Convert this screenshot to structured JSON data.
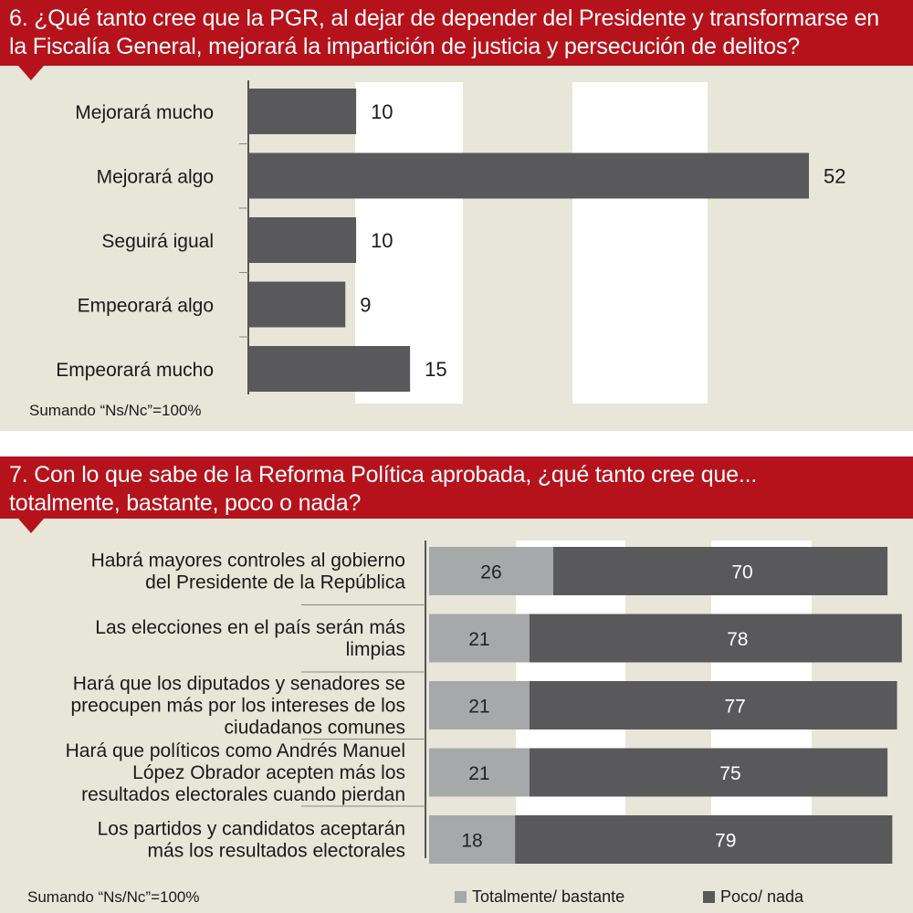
{
  "colors": {
    "banner": "#b5121b",
    "panel_bg": "#e8e6d8",
    "grid_band": "#ffffff",
    "bar_dark": "#59595b",
    "bar_light": "#a7a8aa"
  },
  "q6": {
    "question": "6. ¿Qué tanto cree que la PGR, al dejar de depender del Presidente y transformarse en\nla Fiscalía General, mejorará la impartición de justicia y persecución de delitos?",
    "footnote": "Sumando “Ns/Nc”=100%"
  },
  "q7": {
    "question": "7. Con lo que sabe de la Reforma Política aprobada, ¿qué tanto cree que...\ntotalmente, bastante, poco o nada?",
    "footnote": "Sumando “Ns/Nc”=100%",
    "legend": [
      "Totalmente/ bastante",
      "Poco/ nada"
    ]
  },
  "chart_data": [
    {
      "type": "bar",
      "orientation": "horizontal",
      "categories": [
        "Mejorará mucho",
        "Mejorará algo",
        "Seguirá igual",
        "Empeorará algo",
        "Empeorará mucho"
      ],
      "values": [
        10,
        52,
        10,
        9,
        15
      ],
      "xlim": [
        0,
        52
      ],
      "grid": "vertical bands"
    },
    {
      "type": "bar",
      "orientation": "horizontal",
      "stacked": true,
      "categories": [
        [
          "Habrá mayores controles al gobierno",
          "del Presidente de la República"
        ],
        [
          "Las elecciones en el país serán más",
          "limpias"
        ],
        [
          "Hará que los diputados y senadores se",
          "preocupen más por los intereses de los",
          "ciudadanos comunes"
        ],
        [
          "Hará que políticos como Andrés Manuel",
          "López Obrador acepten más los",
          "resultados electorales cuando pierdan"
        ],
        [
          "Los partidos y candidatos aceptarán",
          "más los resultados electorales"
        ]
      ],
      "series": [
        {
          "name": "Totalmente/ bastante",
          "values": [
            26,
            21,
            21,
            21,
            18
          ]
        },
        {
          "name": "Poco/ nada",
          "values": [
            70,
            78,
            77,
            75,
            79
          ]
        }
      ],
      "xlim": [
        0,
        100
      ],
      "legend": "bottom"
    }
  ]
}
